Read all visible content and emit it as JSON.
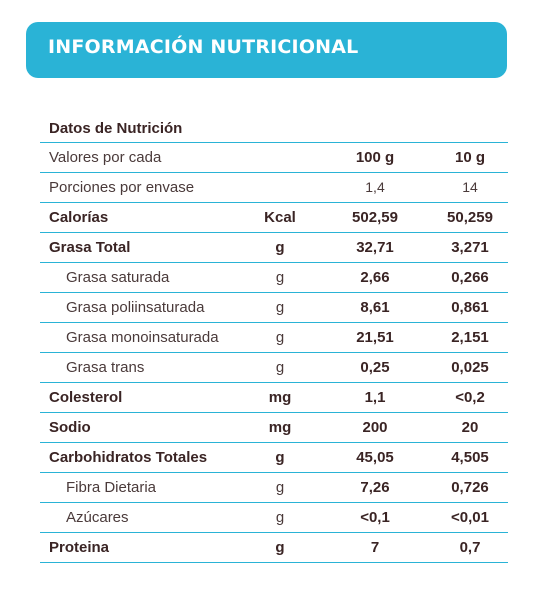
{
  "title": "INFORMACIÓN NUTRICIONAL",
  "header_label": "Datos de Nutrición",
  "rows": [
    {
      "name": "Valores por cada",
      "unit": "",
      "v1": "100 g",
      "v2": "10 g"
    },
    {
      "name": "Porciones por envase",
      "unit": "",
      "v1": "1,4",
      "v2": "14"
    },
    {
      "name": "Calorías",
      "unit": "Kcal",
      "v1": "502,59",
      "v2": "50,259"
    },
    {
      "name": "Grasa Total",
      "unit": "g",
      "v1": "32,71",
      "v2": "3,271"
    },
    {
      "name": "Grasa saturada",
      "unit": "g",
      "v1": "2,66",
      "v2": "0,266"
    },
    {
      "name": "Grasa poliinsaturada",
      "unit": "g",
      "v1": "8,61",
      "v2": "0,861"
    },
    {
      "name": "Grasa monoinsaturada",
      "unit": "g",
      "v1": "21,51",
      "v2": "2,151"
    },
    {
      "name": "Grasa trans",
      "unit": "g",
      "v1": "0,25",
      "v2": "0,025"
    },
    {
      "name": "Colesterol",
      "unit": "mg",
      "v1": "1,1",
      "v2": "<0,2"
    },
    {
      "name": "Sodio",
      "unit": "mg",
      "v1": "200",
      "v2": "20"
    },
    {
      "name": "Carbohidratos Totales",
      "unit": "g",
      "v1": "45,05",
      "v2": "4,505"
    },
    {
      "name": "Fibra Dietaria",
      "unit": "g",
      "v1": "7,26",
      "v2": "0,726"
    },
    {
      "name": "Azúcares",
      "unit": "g",
      "v1": "<0,1",
      "v2": "<0,01"
    },
    {
      "name": "Proteina",
      "unit": "g",
      "v1": "7",
      "v2": "0,7"
    }
  ],
  "colors": {
    "accent": "#2ab3d6",
    "text": "#3a2a2a"
  }
}
